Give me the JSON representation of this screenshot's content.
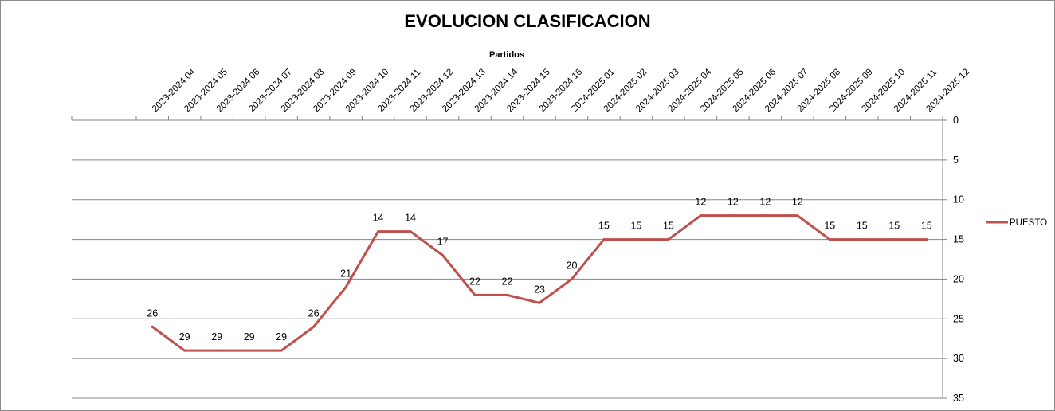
{
  "chart_data": {
    "type": "line",
    "title": "EVOLUCION CLASIFICACION",
    "xlabel": "Partidos",
    "ylabel": "",
    "ylim": [
      0,
      35
    ],
    "y_reversed": true,
    "y_axis_side": "right",
    "y_ticks": [
      0,
      5,
      10,
      15,
      20,
      25,
      30,
      35
    ],
    "x_axis_position": "top",
    "grid": true,
    "legend_position": "right",
    "categories": [
      "",
      "",
      "2023-2024 04",
      "2023-2024 05",
      "2023-2024 06",
      "2023-2024 07",
      "2023-2024 08",
      "2023-2024 09",
      "2023-2024 10",
      "2023-2024 11",
      "2023-2024 12",
      "2023-2024 13",
      "2023-2024 14",
      "2023-2024 15",
      "2023-2024 16",
      "2024-2025 01",
      "2024-2025 02",
      "2024-2025 03",
      "2024-2025 04",
      "2024-2025 05",
      "2024-2025 06",
      "2024-2025 07",
      "2024-2025 08",
      "2024-2025 09",
      "2024-2025 10",
      "2024-2025 11",
      "2024-2025 12"
    ],
    "series": [
      {
        "name": "PUESTO",
        "color": "#c0504d",
        "values": [
          null,
          null,
          26,
          29,
          29,
          29,
          29,
          26,
          21,
          14,
          14,
          17,
          22,
          22,
          23,
          20,
          15,
          15,
          15,
          12,
          12,
          12,
          12,
          15,
          15,
          15,
          15
        ]
      }
    ]
  }
}
